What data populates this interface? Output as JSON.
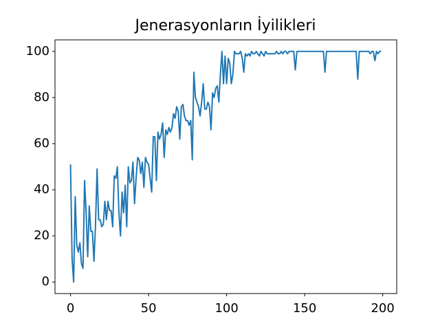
{
  "chart_data": {
    "type": "line",
    "title": "Jenerasyonların İyilikleri",
    "x": [
      0,
      1,
      2,
      3,
      4,
      5,
      6,
      7,
      8,
      9,
      10,
      11,
      12,
      13,
      14,
      15,
      16,
      17,
      18,
      19,
      20,
      21,
      22,
      23,
      24,
      25,
      26,
      27,
      28,
      29,
      30,
      31,
      32,
      33,
      34,
      35,
      36,
      37,
      38,
      39,
      40,
      41,
      42,
      43,
      44,
      45,
      46,
      47,
      48,
      49,
      50,
      51,
      52,
      53,
      54,
      55,
      56,
      57,
      58,
      59,
      60,
      61,
      62,
      63,
      64,
      65,
      66,
      67,
      68,
      69,
      70,
      71,
      72,
      73,
      74,
      75,
      76,
      77,
      78,
      79,
      80,
      81,
      82,
      83,
      84,
      85,
      86,
      87,
      88,
      89,
      90,
      91,
      92,
      93,
      94,
      95,
      96,
      97,
      98,
      99,
      100,
      101,
      102,
      103,
      104,
      105,
      106,
      107,
      108,
      109,
      110,
      111,
      112,
      113,
      114,
      115,
      116,
      117,
      118,
      119,
      120,
      121,
      122,
      123,
      124,
      125,
      126,
      127,
      128,
      129,
      130,
      131,
      132,
      133,
      134,
      135,
      136,
      137,
      138,
      139,
      140,
      141,
      142,
      143,
      144,
      145,
      146,
      147,
      148,
      149,
      150,
      151,
      152,
      153,
      154,
      155,
      156,
      157,
      158,
      159,
      160,
      161,
      162,
      163,
      164,
      165,
      166,
      167,
      168,
      169,
      170,
      171,
      172,
      173,
      174,
      175,
      176,
      177,
      178,
      179,
      180,
      181,
      182,
      183,
      184,
      185,
      186,
      187,
      188,
      189,
      190,
      191,
      192,
      193,
      194,
      195,
      196,
      197,
      198,
      199
    ],
    "values": [
      51,
      10,
      0,
      37,
      16,
      13,
      17,
      8,
      6,
      44,
      30,
      11,
      33,
      22,
      22,
      9,
      25,
      49,
      27,
      27,
      24,
      25,
      35,
      27,
      35,
      31,
      31,
      24,
      46,
      45,
      50,
      30,
      20,
      39,
      30,
      42,
      24,
      50,
      43,
      44,
      52,
      34,
      45,
      54,
      53,
      47,
      52,
      41,
      54,
      52,
      51,
      45,
      39,
      63,
      63,
      44,
      65,
      62,
      64,
      69,
      54,
      66,
      64,
      67,
      65,
      67,
      73,
      71,
      76,
      74,
      62,
      76,
      77,
      72,
      70,
      70,
      68,
      70,
      53,
      91,
      80,
      78,
      76,
      72,
      78,
      86,
      75,
      75,
      78,
      76,
      66,
      82,
      80,
      84,
      85,
      78,
      90,
      100,
      86,
      98,
      86,
      97,
      95,
      86,
      90,
      100,
      99,
      99,
      99,
      100,
      97,
      91,
      99,
      98,
      99,
      98,
      100,
      99,
      99,
      100,
      99,
      98,
      100,
      99,
      98,
      100,
      99,
      99,
      99,
      99,
      99,
      99,
      100,
      99,
      99,
      100,
      99,
      100,
      100,
      99,
      100,
      100,
      100,
      100,
      92,
      100,
      100,
      100,
      100,
      100,
      100,
      100,
      100,
      100,
      100,
      100,
      100,
      100,
      100,
      100,
      100,
      100,
      100,
      91,
      100,
      100,
      100,
      100,
      100,
      100,
      100,
      100,
      100,
      100,
      100,
      100,
      100,
      100,
      100,
      100,
      100,
      100,
      100,
      100,
      88,
      100,
      100,
      100,
      100,
      100,
      100,
      100,
      99,
      100,
      100,
      96,
      100,
      99,
      100,
      100
    ],
    "color": "#1f77b4",
    "xlim": [
      -9.95,
      208.95
    ],
    "xticks": [
      0,
      50,
      100,
      150,
      200
    ],
    "ylim": [
      -5,
      105
    ],
    "yticks": [
      0,
      20,
      40,
      60,
      80,
      100
    ],
    "grid": false
  }
}
